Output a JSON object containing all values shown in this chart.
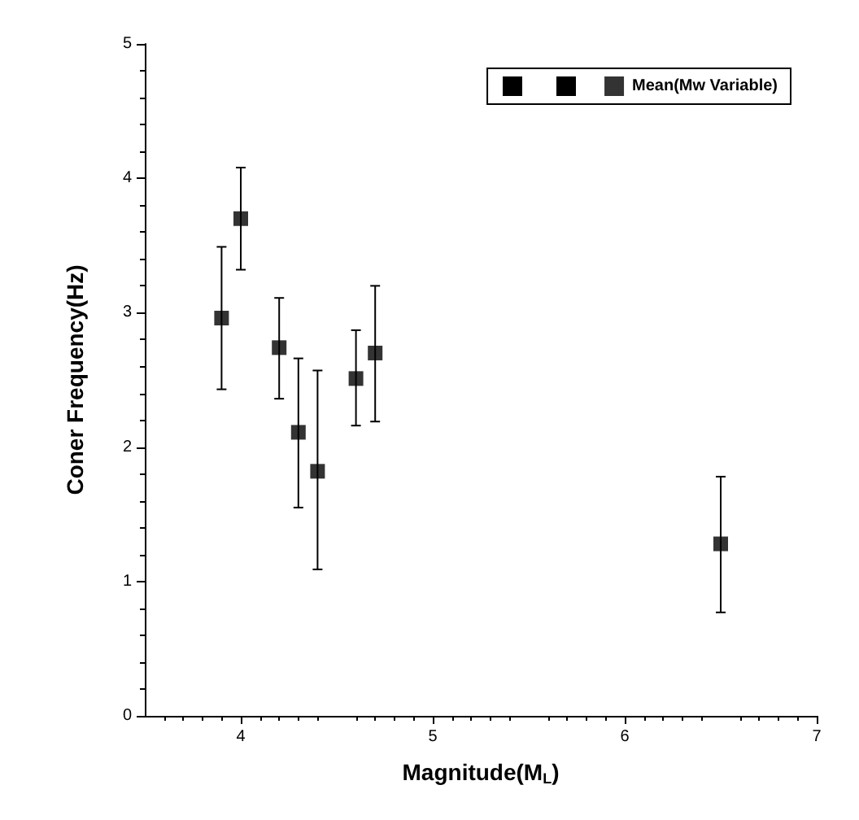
{
  "chart_data": {
    "type": "scatter",
    "xlabel": "Magnitude(M$_{L}$)",
    "ylabel": "Coner Frequency(Hz)",
    "x": [
      3.9,
      4.0,
      4.2,
      4.3,
      4.4,
      4.6,
      4.7,
      6.5
    ],
    "series": [
      {
        "name": "Mean(Mw Variable)",
        "color": "#000000",
        "values": [
          2.96,
          3.7,
          2.74,
          2.11,
          1.82,
          2.51,
          2.7,
          1.28
        ],
        "errors": [
          [
            2.43,
            3.49
          ],
          [
            3.32,
            4.08
          ],
          [
            2.36,
            3.11
          ],
          [
            1.55,
            2.66
          ],
          [
            1.09,
            2.57
          ],
          [
            2.16,
            2.87
          ],
          [
            2.19,
            3.2
          ],
          [
            0.77,
            1.78
          ]
        ]
      }
    ],
    "xlim": [
      3.5,
      7
    ],
    "xticks": [
      4,
      5,
      6,
      7
    ],
    "ylim": [
      0,
      5
    ],
    "yticks": [
      0,
      1,
      2,
      3,
      4,
      5
    ],
    "marker": "square",
    "grid": false,
    "legend": "top right"
  }
}
